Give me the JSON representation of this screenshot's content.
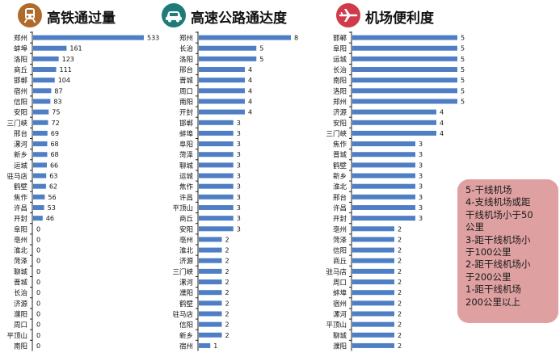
{
  "colors": {
    "bar": "#4e7fc4",
    "axis": "#222222",
    "legend_bg": "#dea0a0",
    "legend_text": "#1a1a1a"
  },
  "panels": [
    {
      "icon": "train-icon",
      "icon_bg": "#b06a2a",
      "title": "高铁通过量"
    },
    {
      "icon": "car-icon",
      "icon_bg": "#1f7a7a",
      "title": "高速公路通达度"
    },
    {
      "icon": "airplane-icon",
      "icon_bg": "#d03a4a",
      "title": "机场便利度"
    }
  ],
  "legend": {
    "lines": [
      "5-干线机场",
      "4-支线机场或距",
      "干线机场小于50",
      "公里",
      "3-距干线机场小",
      "于100公里",
      "2-距干线机场小",
      "于200公里",
      "1-距干线机场",
      "200公里以上"
    ]
  },
  "chart_data": [
    {
      "type": "bar",
      "orientation": "horizontal",
      "title": "高铁通过量",
      "categories": [
        "郑州",
        "蚌埠",
        "洛阳",
        "商丘",
        "邯郸",
        "宿州",
        "信阳",
        "安阳",
        "三门峡",
        "邢台",
        "漯河",
        "新乡",
        "运城",
        "驻马店",
        "鹤壁",
        "焦作",
        "许昌",
        "开封",
        "阜阳",
        "亳州",
        "淮北",
        "菏泽",
        "聊城",
        "晋城",
        "长治",
        "济源",
        "濮阳",
        "周口",
        "平顶山",
        "南阳"
      ],
      "values": [
        533,
        161,
        123,
        111,
        104,
        87,
        83,
        75,
        72,
        69,
        68,
        68,
        66,
        63,
        62,
        56,
        53,
        46,
        0,
        0,
        0,
        0,
        0,
        0,
        0,
        0,
        0,
        0,
        0,
        0
      ]
    },
    {
      "type": "bar",
      "orientation": "horizontal",
      "title": "高速公路通达度",
      "categories": [
        "郑州",
        "长治",
        "洛阳",
        "邢台",
        "晋城",
        "周口",
        "南阳",
        "开封",
        "邯郸",
        "蚌埠",
        "阜阳",
        "菏泽",
        "聊城",
        "运城",
        "焦作",
        "许昌",
        "平顶山",
        "商丘",
        "安阳",
        "亳州",
        "淮北",
        "济源",
        "三门峡",
        "漯河",
        "濮阳",
        "鹤壁",
        "驻马店",
        "信阳",
        "新乡",
        "宿州"
      ],
      "values": [
        8,
        5,
        5,
        4,
        4,
        4,
        4,
        4,
        3,
        3,
        3,
        3,
        3,
        3,
        3,
        3,
        3,
        3,
        3,
        2,
        2,
        2,
        2,
        2,
        2,
        2,
        2,
        2,
        2,
        1
      ]
    },
    {
      "type": "bar",
      "orientation": "horizontal",
      "title": "机场便利度",
      "categories": [
        "邯郸",
        "阜阳",
        "运城",
        "长治",
        "南阳",
        "洛阳",
        "郑州",
        "济源",
        "安阳",
        "三门峡",
        "焦作",
        "晋城",
        "鹤壁",
        "新乡",
        "淮北",
        "邢台",
        "许昌",
        "开封",
        "亳州",
        "菏泽",
        "信阳",
        "商丘",
        "驻马店",
        "周口",
        "蚌埠",
        "宿州",
        "漯河",
        "平顶山",
        "聊城",
        "濮阳"
      ],
      "values": [
        5,
        5,
        5,
        5,
        5,
        5,
        5,
        4,
        4,
        4,
        3,
        3,
        3,
        3,
        3,
        3,
        3,
        3,
        2,
        2,
        2,
        2,
        2,
        2,
        2,
        2,
        2,
        2,
        2,
        2
      ]
    }
  ]
}
